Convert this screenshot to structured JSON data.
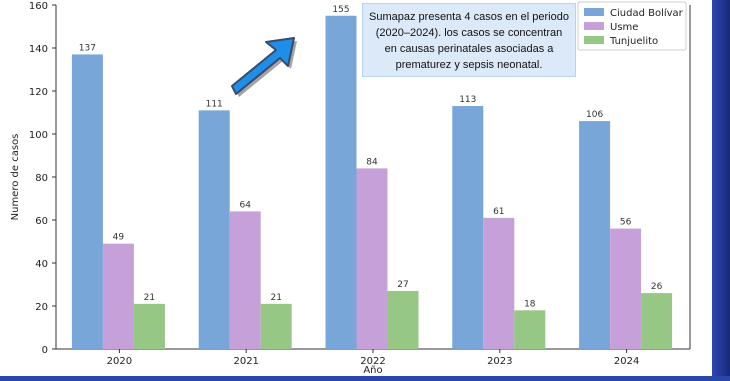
{
  "chart_data": {
    "type": "bar",
    "categories": [
      "2020",
      "2021",
      "2022",
      "2023",
      "2024"
    ],
    "series": [
      {
        "name": "Ciudad Bolívar",
        "values": [
          137,
          111,
          155,
          113,
          106
        ],
        "color": "#78a6d8"
      },
      {
        "name": "Usme",
        "values": [
          49,
          64,
          84,
          61,
          56
        ],
        "color": "#c6a0d8"
      },
      {
        "name": "Tunjuelito",
        "values": [
          21,
          21,
          27,
          18,
          26
        ],
        "color": "#96c785"
      }
    ],
    "xlabel": "Año",
    "ylabel": "Numero de casos",
    "ylim": [
      0,
      160
    ],
    "yticks": [
      0,
      20,
      40,
      60,
      80,
      100,
      120,
      140,
      160
    ],
    "grid": false,
    "legend_position": "top-right",
    "data_labels": true
  },
  "annotation": {
    "text": "Sumapaz presenta 4 casos en el periodo (2020–2024). los casos se concentran en causas perinatales asociadas a prematurez y sepsis neonatal."
  },
  "colors": {
    "arrow": "#1e8fe8",
    "frame": "#1b2f7a"
  }
}
